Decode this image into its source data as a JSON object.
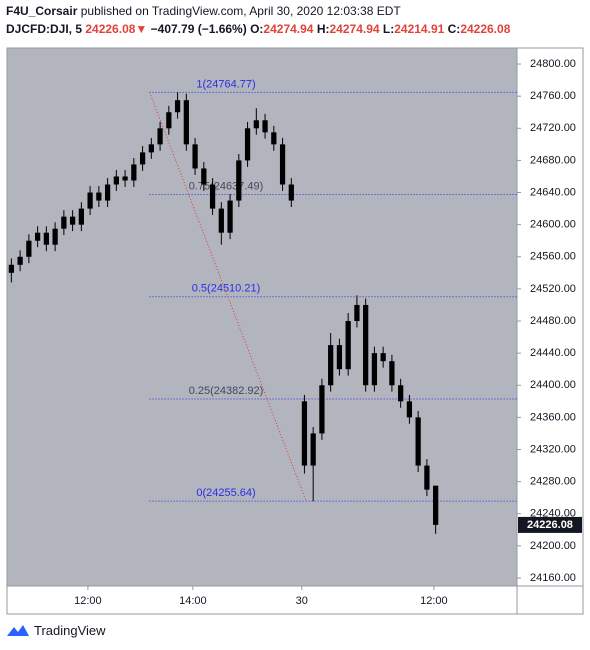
{
  "header": {
    "author": "F4U_Corsair",
    "published": "published on TradingView.com, April 30, 2020 12:03:38 EDT",
    "symbol": "DJCFD:DJI, 5",
    "price": "24226.08",
    "arrow": "▼",
    "change": "−407.79 (−1.66%)",
    "o_label": "O:",
    "o": "24274.94",
    "h_label": "H:",
    "h": "24274.94",
    "l_label": "L:",
    "l": "24214.91",
    "c_label": "C:",
    "c": "24226.08"
  },
  "chart_data": {
    "type": "candlestick",
    "color": "#000000",
    "x": [
      0.5,
      1.5,
      2.5,
      3.5,
      4.5,
      5.5,
      6.5,
      7.5,
      8.5,
      9.5,
      10.5,
      11.5,
      12.5,
      13.5,
      14.5,
      15.5,
      16.5,
      17.5,
      18.5,
      19.5,
      20.5,
      21.5,
      22.5,
      23.5,
      24.5,
      25.5,
      26.5,
      27.5,
      28.5,
      29.5,
      30.5,
      31.5,
      32.5,
      34,
      35,
      36,
      37,
      38,
      39,
      40,
      41,
      42,
      43,
      44,
      45,
      46,
      47,
      48,
      49
    ],
    "open": [
      24540,
      24550,
      24560,
      24580,
      24590,
      24575,
      24595,
      24610,
      24600,
      24620,
      24640,
      24630,
      24650,
      24660,
      24655,
      24675,
      24690,
      24700,
      24720,
      24740,
      24755,
      24700,
      24670,
      24650,
      24620,
      24590,
      24630,
      24680,
      24720,
      24730,
      24715,
      24700,
      24650,
      24380,
      24300,
      24340,
      24400,
      24450,
      24420,
      24480,
      24500,
      24400,
      24440,
      24430,
      24400,
      24380,
      24360,
      24300,
      24274.94
    ],
    "high": [
      24558,
      24568,
      24588,
      24598,
      24598,
      24603,
      24618,
      24618,
      24628,
      24648,
      24648,
      24658,
      24668,
      24668,
      24683,
      24698,
      24708,
      24728,
      24748,
      24764.77,
      24763,
      24708,
      24678,
      24658,
      24628,
      24638,
      24688,
      24728,
      24745,
      24738,
      24723,
      24708,
      24658,
      24388,
      24348,
      24408,
      24465,
      24458,
      24490,
      24512,
      24508,
      24448,
      24448,
      24438,
      24408,
      24388,
      24368,
      24308,
      24274.94
    ],
    "low": [
      24528,
      24542,
      24552,
      24572,
      24567,
      24567,
      24587,
      24592,
      24592,
      24612,
      24622,
      24622,
      24642,
      24647,
      24647,
      24667,
      24682,
      24692,
      24712,
      24732,
      24692,
      24662,
      24642,
      24612,
      24575,
      24582,
      24622,
      24672,
      24712,
      24707,
      24692,
      24642,
      24622,
      24290,
      24255.64,
      24332,
      24392,
      24412,
      24412,
      24472,
      24392,
      24392,
      24422,
      24392,
      24372,
      24352,
      24292,
      24262,
      24214.91
    ],
    "close": [
      24550,
      24560,
      24580,
      24590,
      24575,
      24595,
      24610,
      24600,
      24620,
      24640,
      24630,
      24650,
      24660,
      24655,
      24675,
      24690,
      24700,
      24720,
      24740,
      24755,
      24700,
      24670,
      24650,
      24620,
      24590,
      24630,
      24680,
      24720,
      24730,
      24715,
      24700,
      24650,
      24630,
      24300,
      24340,
      24400,
      24450,
      24420,
      24480,
      24500,
      24400,
      24440,
      24430,
      24400,
      24380,
      24360,
      24300,
      24270,
      24226.08
    ],
    "xlim": [
      0,
      58.3
    ],
    "ylim": [
      24150,
      24820
    ],
    "xticks": [
      {
        "value": 9.25,
        "label": "12:00"
      },
      {
        "value": 21.25,
        "label": "14:00"
      },
      {
        "value": 33.7,
        "label": "30"
      },
      {
        "value": 48.8,
        "label": "12:00"
      }
    ],
    "yticks": [
      {
        "value": 24160,
        "label": "24160.00"
      },
      {
        "value": 24200,
        "label": "24200.00"
      },
      {
        "value": 24240,
        "label": "24240.00"
      },
      {
        "value": 24280,
        "label": "24280.00"
      },
      {
        "value": 24320,
        "label": "24320.00"
      },
      {
        "value": 24360,
        "label": "24360.00"
      },
      {
        "value": 24400,
        "label": "24400.00"
      },
      {
        "value": 24440,
        "label": "24440.00"
      },
      {
        "value": 24480,
        "label": "24480.00"
      },
      {
        "value": 24520,
        "label": "24520.00"
      },
      {
        "value": 24560,
        "label": "24560.00"
      },
      {
        "value": 24600,
        "label": "24600.00"
      },
      {
        "value": 24640,
        "label": "24640.00"
      },
      {
        "value": 24680,
        "label": "24680.00"
      },
      {
        "value": 24720,
        "label": "24720.00"
      },
      {
        "value": 24760,
        "label": "24760.00"
      },
      {
        "value": 24800,
        "label": "24800.00"
      }
    ],
    "fib": {
      "x_start": 16.3,
      "color": "#2a2ee8",
      "levels": [
        {
          "price": 24764.77,
          "label": "1(24764.77)",
          "color": "#2a2ee8"
        },
        {
          "price": 24637.49,
          "label": "0.75(24637.49)",
          "color": "#454560"
        },
        {
          "price": 24510.21,
          "label": "0.5(24510.21)",
          "color": "#2a2ee8"
        },
        {
          "price": 24382.92,
          "label": "0.25(24382.92)",
          "color": "#454560"
        },
        {
          "price": 24255.64,
          "label": "0(24255.64)",
          "color": "#2a2ee8"
        }
      ]
    },
    "trend_line": {
      "x": [
        16.3,
        34.2
      ],
      "y": [
        24764.77,
        24255.64
      ],
      "color": "#e53935"
    }
  },
  "footer": {
    "brand": "TradingView"
  }
}
